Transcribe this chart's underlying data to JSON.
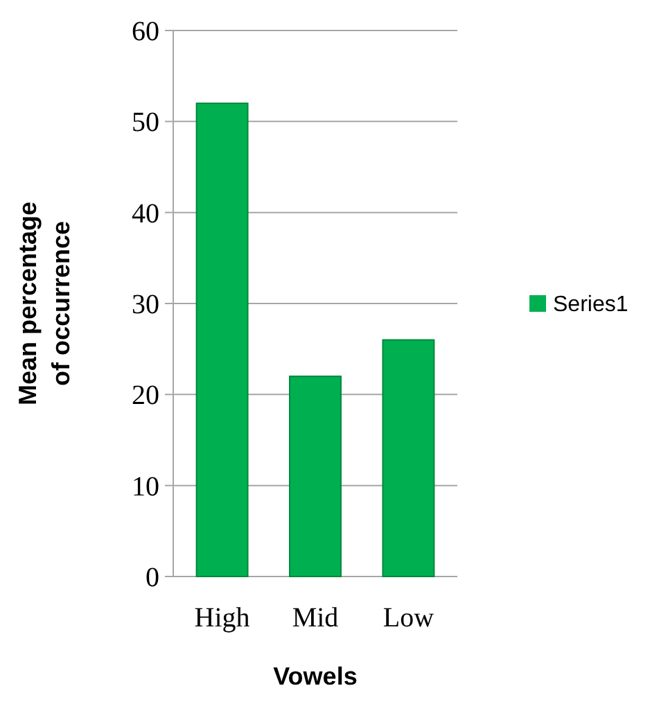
{
  "chart_data": {
    "type": "bar",
    "xlabel": "Vowels",
    "ylabel": "Mean percentage of occurrence",
    "categories": [
      "High",
      "Mid",
      "Low"
    ],
    "series": [
      {
        "name": "Series1",
        "color": "#00b050",
        "values": [
          52,
          22,
          26
        ]
      }
    ],
    "ylim": [
      0,
      60
    ],
    "yticks": [
      0,
      10,
      20,
      30,
      40,
      50,
      60
    ],
    "grid": "y",
    "legend": "right"
  }
}
